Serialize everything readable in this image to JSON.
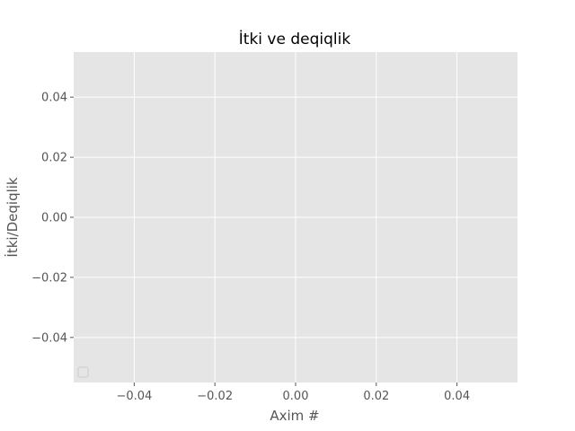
{
  "chart_data": {
    "type": "line",
    "title": "İtki ve deqiqlik",
    "xlabel": "Axim #",
    "ylabel": "İtki/Deqiqlik",
    "xlim": [
      -0.055,
      0.055
    ],
    "ylim": [
      -0.055,
      0.055
    ],
    "xticks": [
      -0.04,
      -0.02,
      0.0,
      0.02,
      0.04
    ],
    "xtick_labels": [
      "−0.04",
      "−0.02",
      "0.00",
      "0.02",
      "0.04"
    ],
    "yticks": [
      0.04,
      0.02,
      0.0,
      -0.02,
      -0.04
    ],
    "ytick_labels": [
      "0.04",
      "0.02",
      "0.00",
      "−0.02",
      "−0.04"
    ],
    "series": [],
    "grid": true,
    "legend": "lower-left",
    "style": "ggplot",
    "colors": {
      "plot_background": "#e5e5e5",
      "grid": "#ffffff",
      "text": "#555555",
      "title": "#000000"
    }
  }
}
